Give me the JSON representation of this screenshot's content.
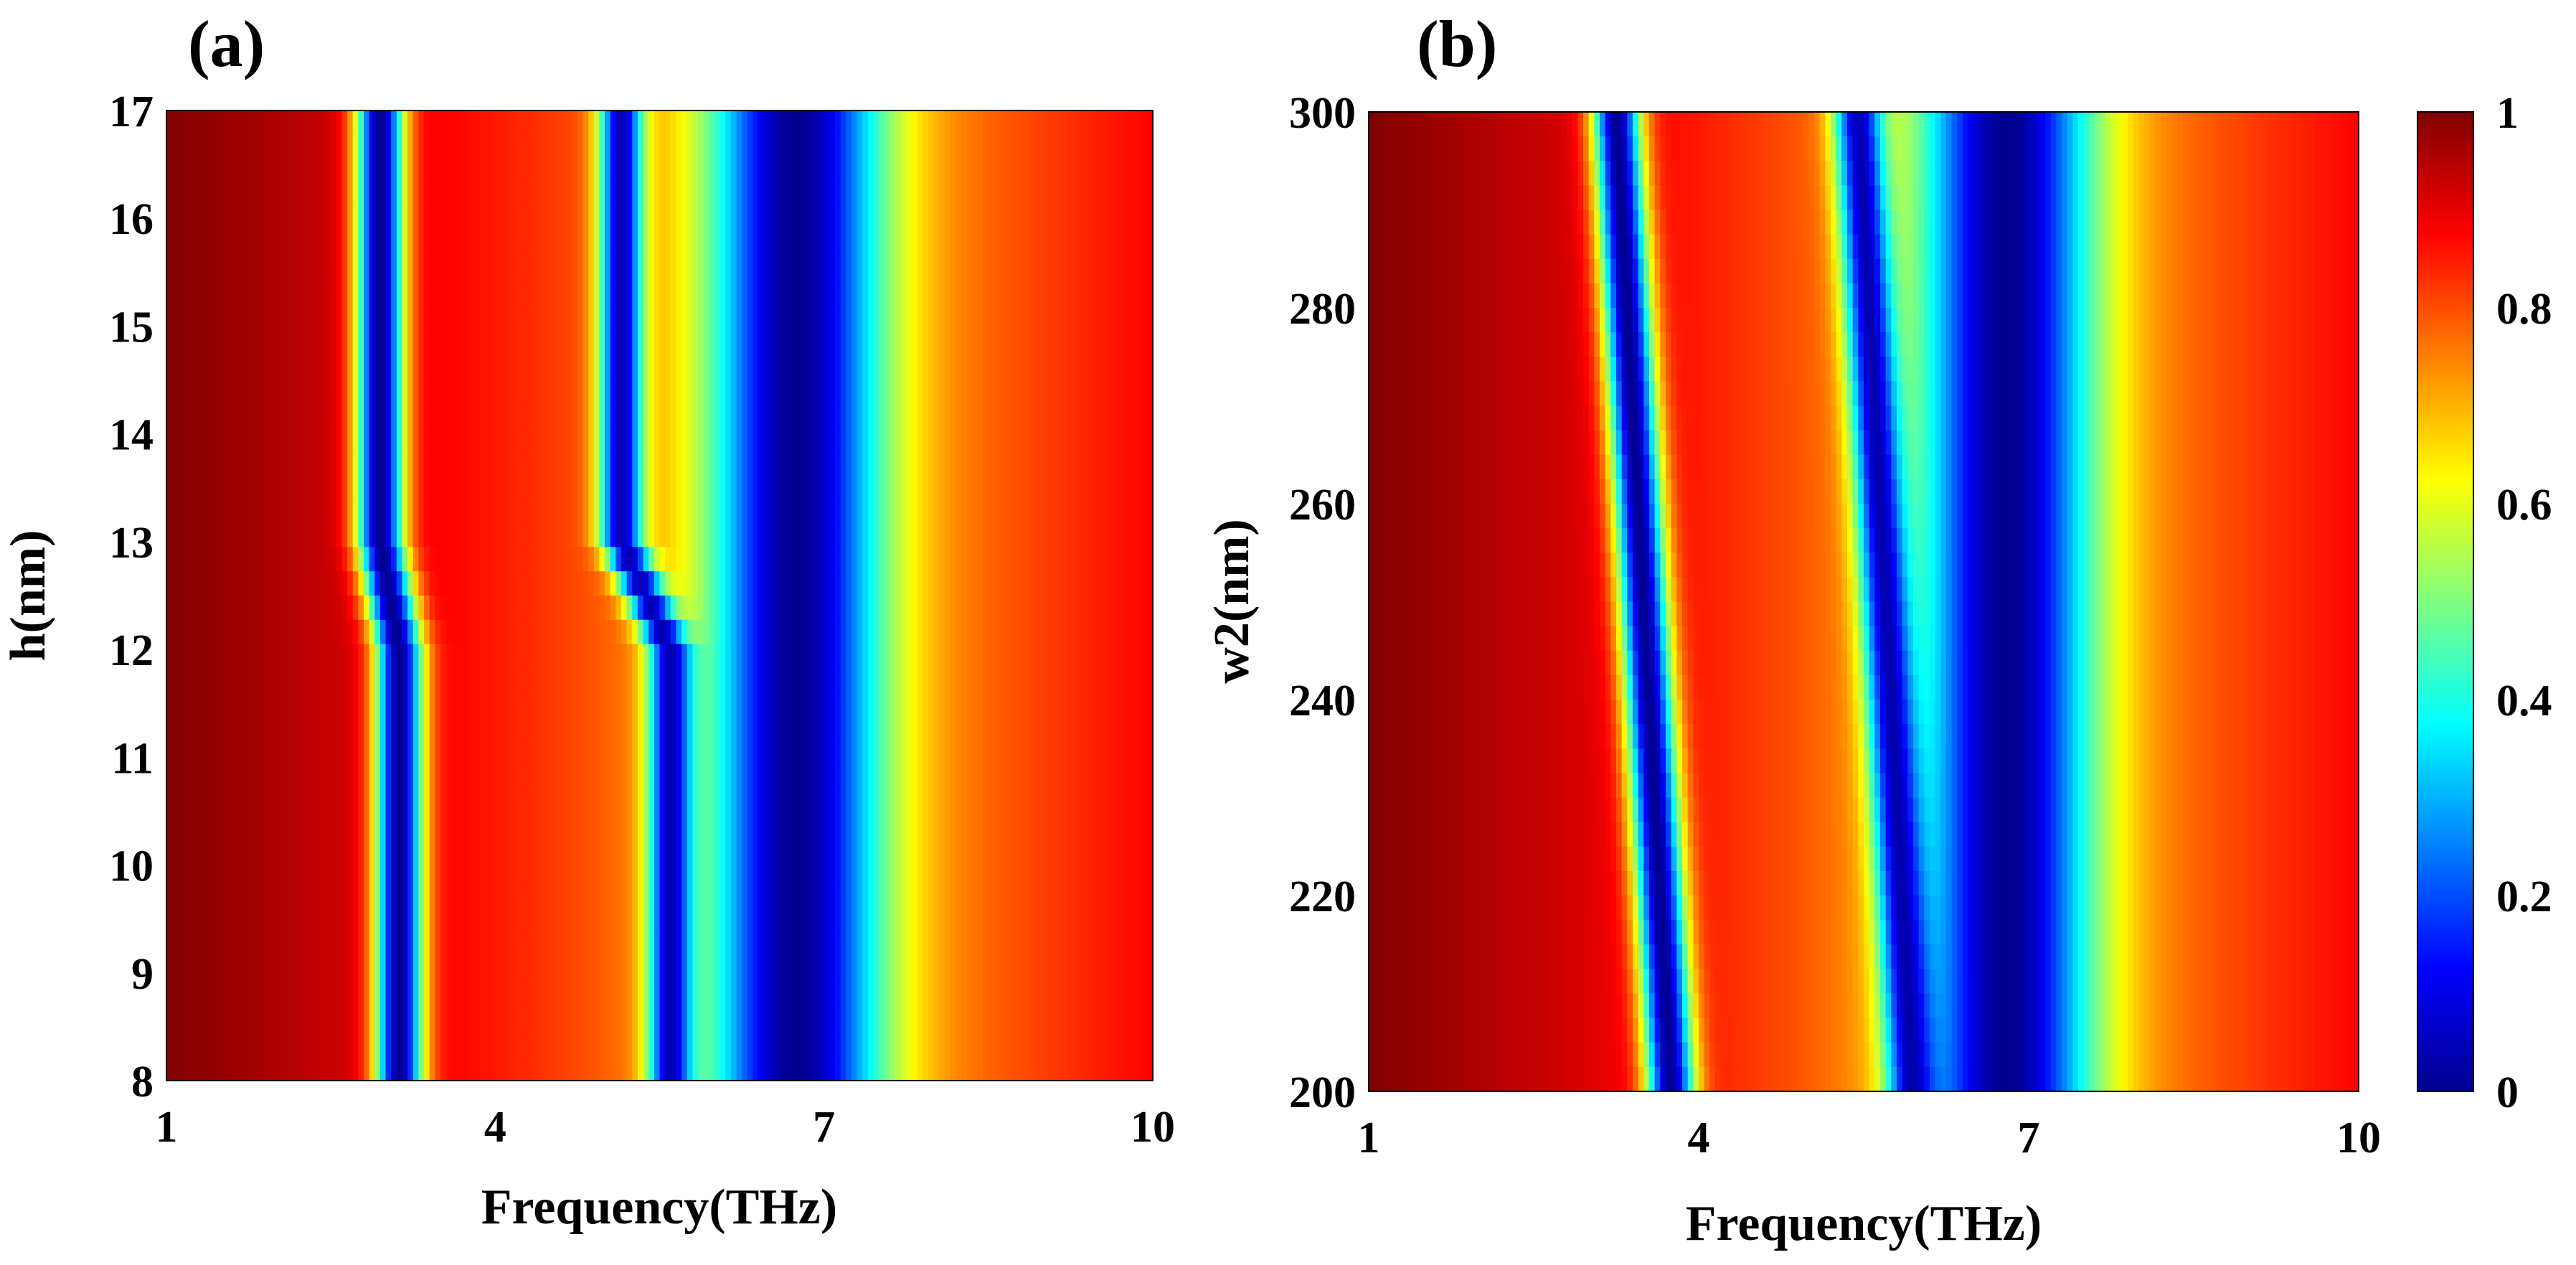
{
  "chart_data": [
    {
      "type": "heatmap",
      "panel_label": "(a)",
      "xlabel": "Frequency(THz)",
      "ylabel": "h(nm)",
      "xlim": [
        1,
        10
      ],
      "ylim": [
        8,
        17
      ],
      "xticks": [
        "1",
        "4",
        "7",
        "10"
      ],
      "yticks": [
        "8",
        "9",
        "10",
        "11",
        "12",
        "13",
        "14",
        "15",
        "16",
        "17"
      ],
      "value_description": "normalized transmission, 0 to 1",
      "dips": [
        {
          "below": {
            "y": [
              8,
              12
            ],
            "x": [
              2.9,
              3.35
            ]
          },
          "transition": [
            12,
            13
          ],
          "above": {
            "y": [
              13,
              17
            ],
            "x": [
              2.75,
              3.15
            ]
          }
        },
        {
          "below": {
            "y": [
              8,
              12
            ],
            "x": [
              5.45,
              5.75
            ]
          },
          "transition": [
            12,
            13
          ],
          "above": {
            "y": [
              13,
              17
            ],
            "x": [
              4.9,
              5.4
            ]
          }
        },
        {
          "broad_minimum": {
            "y": [
              8,
              17
            ],
            "x": [
              6.1,
              7.3
            ],
            "center": 6.75
          }
        }
      ]
    },
    {
      "type": "heatmap",
      "panel_label": "(b)",
      "xlabel": "Frequency(THz)",
      "ylabel": "w2(nm)",
      "xlim": [
        1,
        10
      ],
      "ylim": [
        200,
        300
      ],
      "xticks": [
        "1",
        "4",
        "7",
        "10"
      ],
      "yticks": [
        "200",
        "220",
        "240",
        "260",
        "280",
        "300"
      ],
      "value_description": "normalized transmission, 0 to 1",
      "dips": [
        {
          "y": [
            200,
            300
          ],
          "x_at_ymin": 3.75,
          "x_at_ymax": 3.25
        },
        {
          "y": [
            200,
            300
          ],
          "x_at_ymin": 5.95,
          "x_at_ymax": 5.45
        },
        {
          "broad_minimum": {
            "y": [
              200,
              300
            ],
            "x": [
              6.2,
              7.4
            ],
            "center": 6.8
          }
        }
      ]
    }
  ],
  "colorbar": {
    "colormap": "jet",
    "range": [
      0,
      1
    ],
    "ticks": [
      "0",
      "0.2",
      "0.4",
      "0.6",
      "0.8",
      "1"
    ],
    "colors": [
      "#00008F",
      "#0000FF",
      "#00FFFF",
      "#FFFF00",
      "#FF0000",
      "#800000"
    ]
  }
}
